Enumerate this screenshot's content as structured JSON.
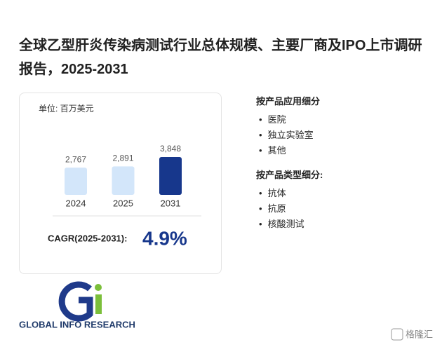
{
  "chart_data": {
    "type": "bar",
    "title": "全球乙型肝炎传染病测试行业总体规模、主要厂商及IPO上市调研报告，2025-2031",
    "unit": "单位: 百万美元",
    "categories": [
      "2024",
      "2025",
      "2031"
    ],
    "values": [
      2767,
      2891,
      3848
    ],
    "value_labels": [
      "2,767",
      "2,891",
      "3,848"
    ],
    "colors": [
      "#d3e6fa",
      "#d3e6fa",
      "#17378c"
    ]
  },
  "cagr": {
    "label": "CAGR(2025-2031):",
    "value": "4.9%"
  },
  "segments": [
    {
      "title": "按产品应用细分",
      "items": [
        "医院",
        "独立实验室",
        "其他"
      ]
    },
    {
      "title": "按产品类型细分:",
      "items": [
        "抗体",
        "抗原",
        "核酸测试"
      ]
    }
  ],
  "logo": "GLOBAL INFO RESEARCH",
  "watermark": "格隆汇"
}
